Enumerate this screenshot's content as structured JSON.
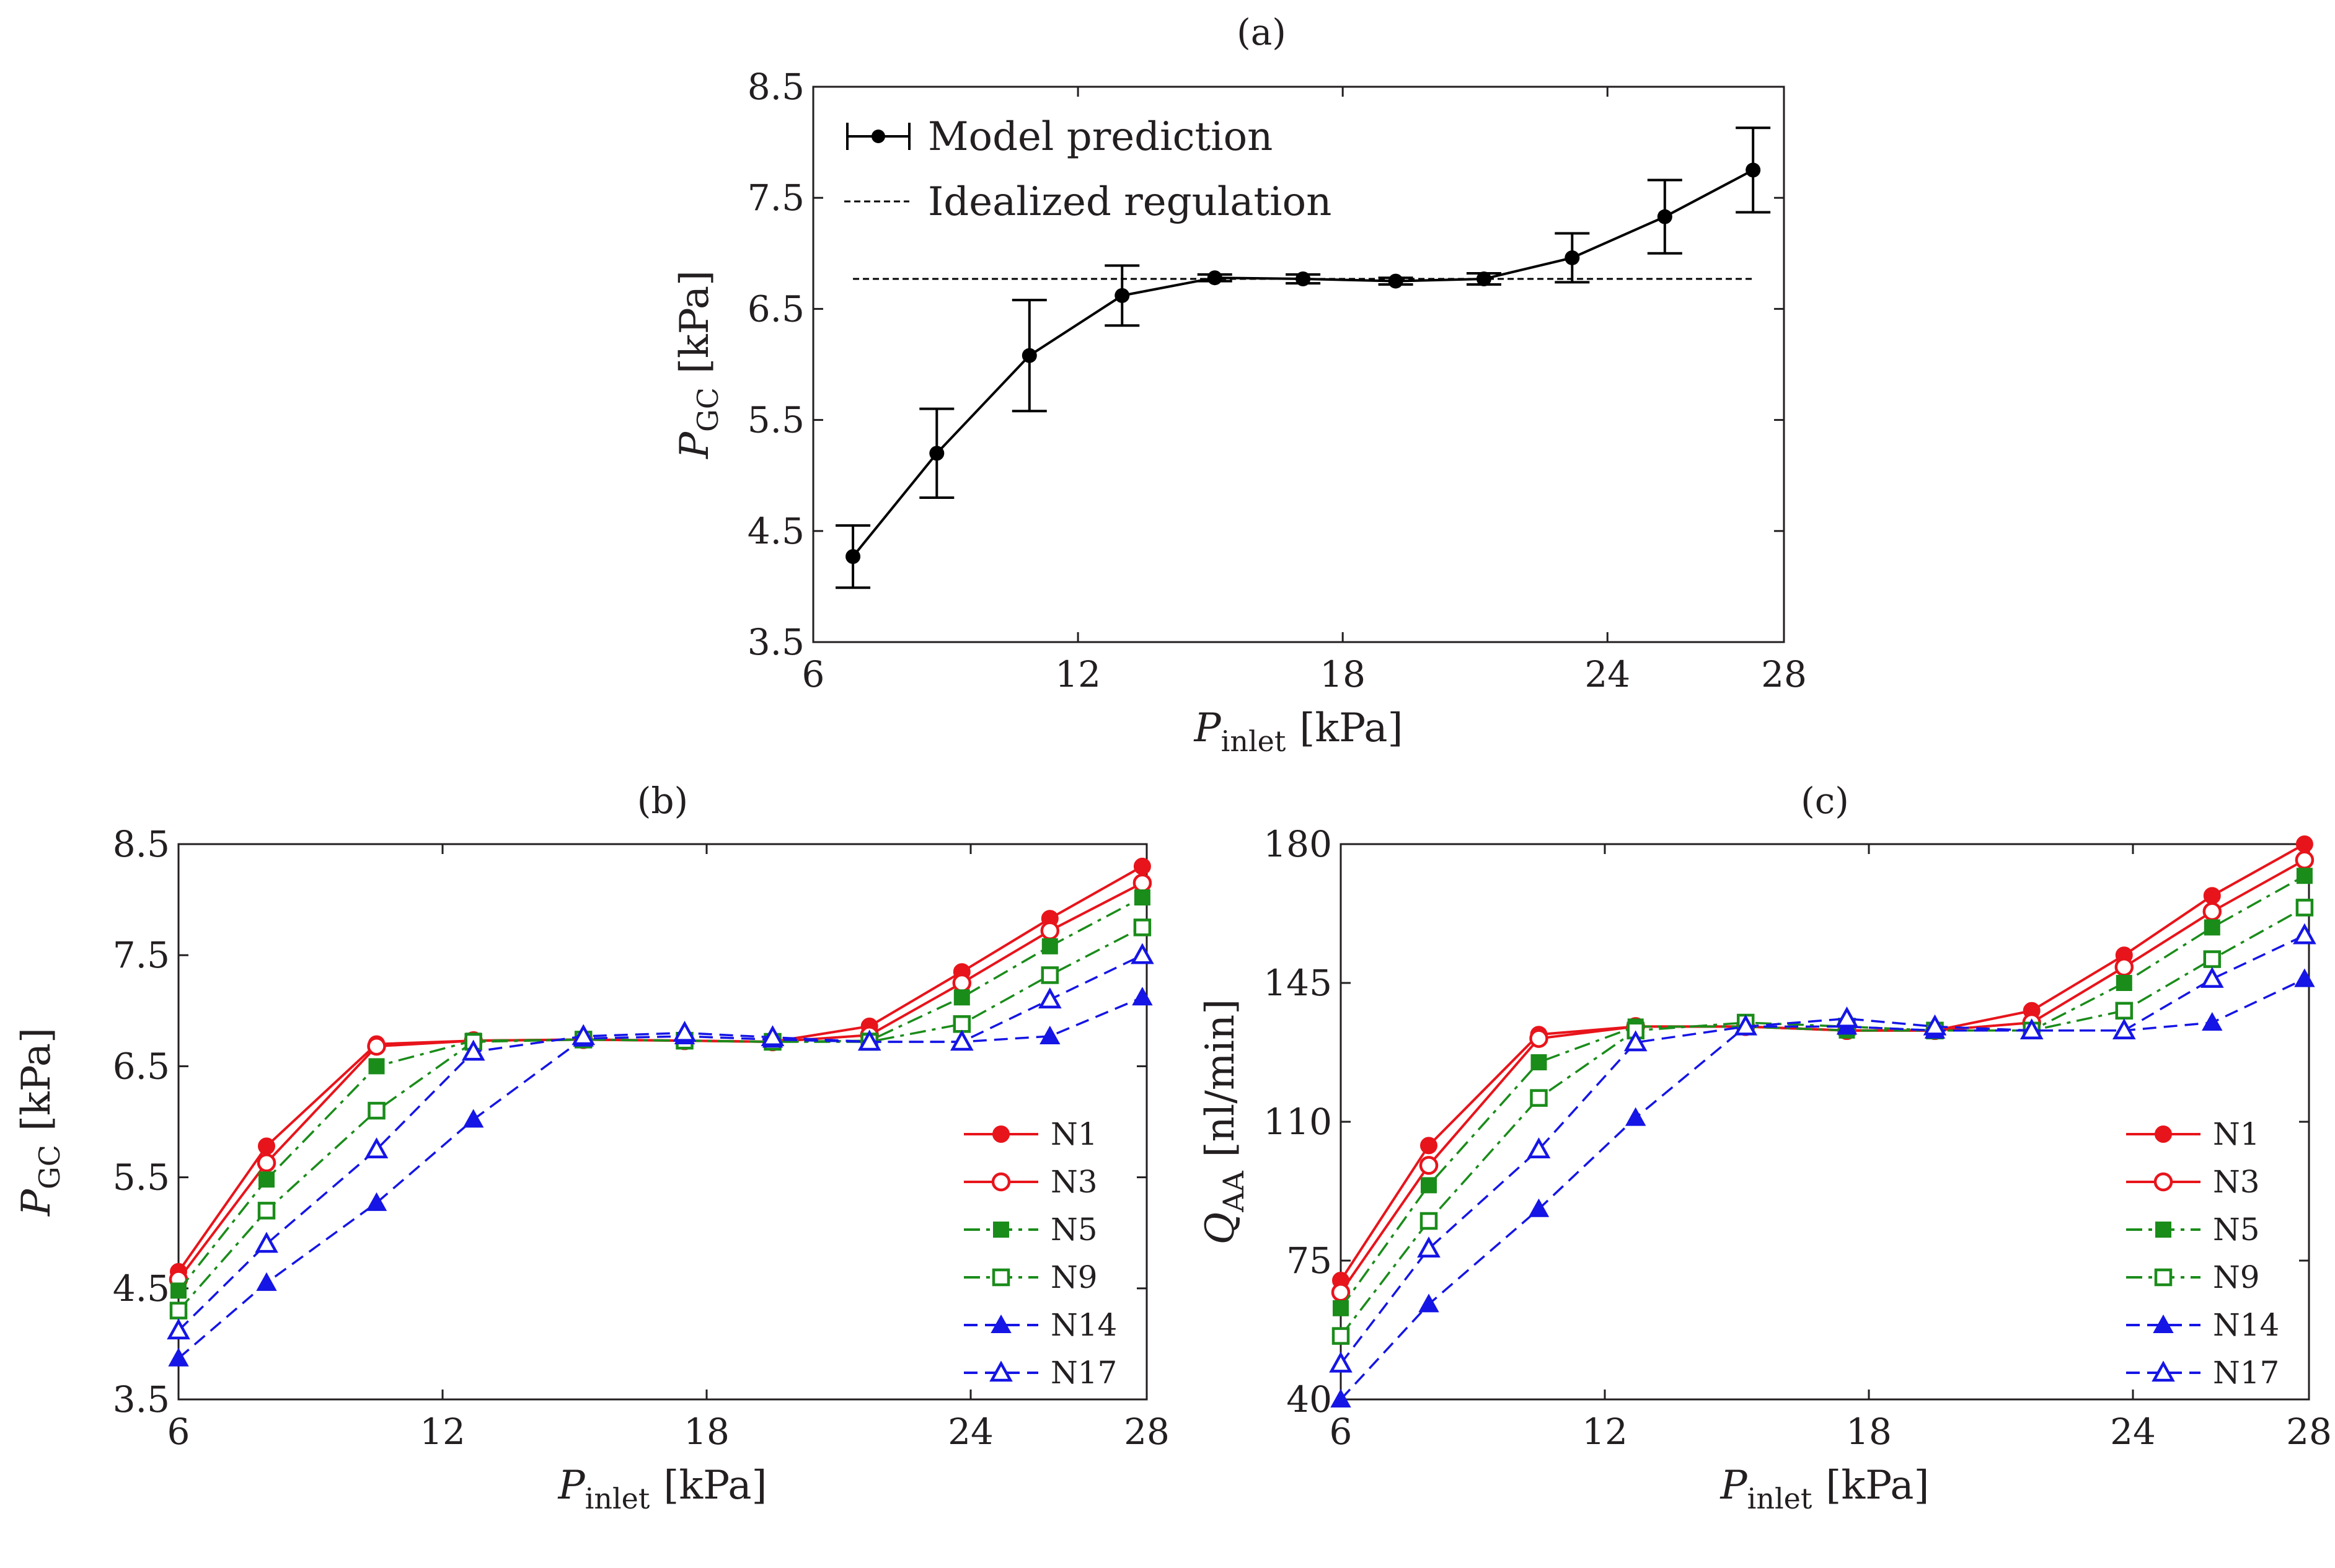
{
  "chart_data": [
    {
      "id": "a",
      "type": "line",
      "title": "(a)",
      "xlabel": {
        "main": "P",
        "sub": "inlet",
        "unit": "[kPa]"
      },
      "ylabel": {
        "main": "P",
        "sub": "GC",
        "unit": "[kPa]"
      },
      "xlim": [
        6,
        28
      ],
      "ylim": [
        3.5,
        8.5
      ],
      "xticks": [
        "6",
        "12",
        "18",
        "24",
        "28"
      ],
      "yticks": [
        "3.5",
        "4.5",
        "5.5",
        "6.5",
        "7.5",
        "8.5"
      ],
      "legend_position": "top-left",
      "series": [
        {
          "name": "Model prediction",
          "style": "solid-errorbar",
          "color": "#000000",
          "x": [
            6.9,
            8.8,
            10.9,
            13.0,
            15.1,
            17.1,
            19.2,
            21.2,
            23.2,
            25.3,
            27.3
          ],
          "y": [
            4.27,
            5.2,
            6.08,
            6.62,
            6.78,
            6.77,
            6.75,
            6.77,
            6.96,
            7.33,
            7.75
          ],
          "yerr": [
            0.28,
            0.4,
            0.5,
            0.27,
            0.03,
            0.04,
            0.03,
            0.05,
            0.22,
            0.33,
            0.38
          ]
        },
        {
          "name": "Idealized regulation",
          "style": "dashed",
          "color": "#000000",
          "x": [
            6.9,
            27.3
          ],
          "y": [
            6.77,
            6.77
          ]
        }
      ]
    },
    {
      "id": "b",
      "type": "line",
      "title": "(b)",
      "xlabel": {
        "main": "P",
        "sub": "inlet",
        "unit": "[kPa]"
      },
      "ylabel": {
        "main": "P",
        "sub": "GC",
        "unit": "[kPa]"
      },
      "xlim": [
        6,
        28
      ],
      "ylim": [
        3.5,
        8.5
      ],
      "xticks": [
        "6",
        "12",
        "18",
        "24",
        "28"
      ],
      "yticks": [
        "3.5",
        "4.5",
        "5.5",
        "6.5",
        "7.5",
        "8.5"
      ],
      "legend_position": "lower-right",
      "x": [
        6,
        8,
        10.5,
        12.7,
        15.2,
        17.5,
        19.5,
        21.7,
        23.8,
        25.8,
        27.9
      ],
      "series": [
        {
          "name": "N1",
          "color": "#e8141b",
          "marker": "circle-filled",
          "dash": "solid",
          "values": [
            4.65,
            5.78,
            6.7,
            6.73,
            6.74,
            6.73,
            6.72,
            6.86,
            7.35,
            7.83,
            8.3
          ]
        },
        {
          "name": "N3",
          "color": "#e8141b",
          "marker": "circle-open",
          "dash": "solid",
          "values": [
            4.58,
            5.63,
            6.68,
            6.73,
            6.74,
            6.73,
            6.72,
            6.78,
            7.25,
            7.72,
            8.15
          ]
        },
        {
          "name": "N5",
          "color": "#1a8c1a",
          "marker": "square-filled",
          "dash": "dashdot",
          "values": [
            4.48,
            5.48,
            6.5,
            6.73,
            6.74,
            6.73,
            6.72,
            6.73,
            7.12,
            7.58,
            8.02
          ]
        },
        {
          "name": "N9",
          "color": "#1a8c1a",
          "marker": "square-open",
          "dash": "dashdot",
          "values": [
            4.3,
            5.2,
            6.1,
            6.72,
            6.74,
            6.73,
            6.72,
            6.72,
            6.88,
            7.32,
            7.75
          ]
        },
        {
          "name": "N14",
          "color": "#1515e6",
          "marker": "triangle-filled",
          "dash": "dashed",
          "values": [
            3.87,
            4.55,
            5.27,
            6.02,
            6.75,
            6.77,
            6.74,
            6.72,
            6.72,
            6.77,
            7.12
          ]
        },
        {
          "name": "N17",
          "color": "#1515e6",
          "marker": "triangle-open",
          "dash": "dashed",
          "values": [
            4.12,
            4.9,
            5.75,
            6.63,
            6.77,
            6.8,
            6.76,
            6.72,
            6.72,
            7.1,
            7.5
          ]
        }
      ]
    },
    {
      "id": "c",
      "type": "line",
      "title": "(c)",
      "xlabel": {
        "main": "P",
        "sub": "inlet",
        "unit": "[kPa]"
      },
      "ylabel": {
        "main": "Q",
        "sub": "AA",
        "unit": "[nl/min]"
      },
      "xlim": [
        6,
        28
      ],
      "ylim": [
        40,
        180
      ],
      "xticks": [
        "6",
        "12",
        "18",
        "24",
        "28"
      ],
      "yticks": [
        "40",
        "75",
        "110",
        "145",
        "180"
      ],
      "legend_position": "lower-right",
      "x": [
        6,
        8,
        10.5,
        12.7,
        15.2,
        17.5,
        19.5,
        21.7,
        23.8,
        25.8,
        27.9
      ],
      "series": [
        {
          "name": "N1",
          "color": "#e8141b",
          "marker": "circle-filled",
          "dash": "solid",
          "values": [
            70,
            104,
            132,
            134,
            134,
            133,
            133,
            138,
            152,
            167,
            180
          ]
        },
        {
          "name": "N3",
          "color": "#e8141b",
          "marker": "circle-open",
          "dash": "solid",
          "values": [
            67,
            99,
            131,
            134,
            134,
            133,
            133,
            135,
            149,
            163,
            176
          ]
        },
        {
          "name": "N5",
          "color": "#1a8c1a",
          "marker": "square-filled",
          "dash": "dashdot",
          "values": [
            63,
            94,
            125,
            134,
            134,
            133,
            133,
            133,
            145,
            159,
            172
          ]
        },
        {
          "name": "N9",
          "color": "#1a8c1a",
          "marker": "square-open",
          "dash": "dashdot",
          "values": [
            56,
            85,
            116,
            133,
            135,
            134,
            133,
            133,
            138,
            151,
            164
          ]
        },
        {
          "name": "N14",
          "color": "#1515e6",
          "marker": "triangle-filled",
          "dash": "dashed",
          "values": [
            40,
            64,
            88,
            111,
            134,
            134,
            133,
            133,
            133,
            135,
            146
          ]
        },
        {
          "name": "N17",
          "color": "#1515e6",
          "marker": "triangle-open",
          "dash": "dashed",
          "values": [
            49,
            78,
            103,
            130,
            134,
            136,
            134,
            133,
            133,
            146,
            157
          ]
        }
      ]
    }
  ]
}
